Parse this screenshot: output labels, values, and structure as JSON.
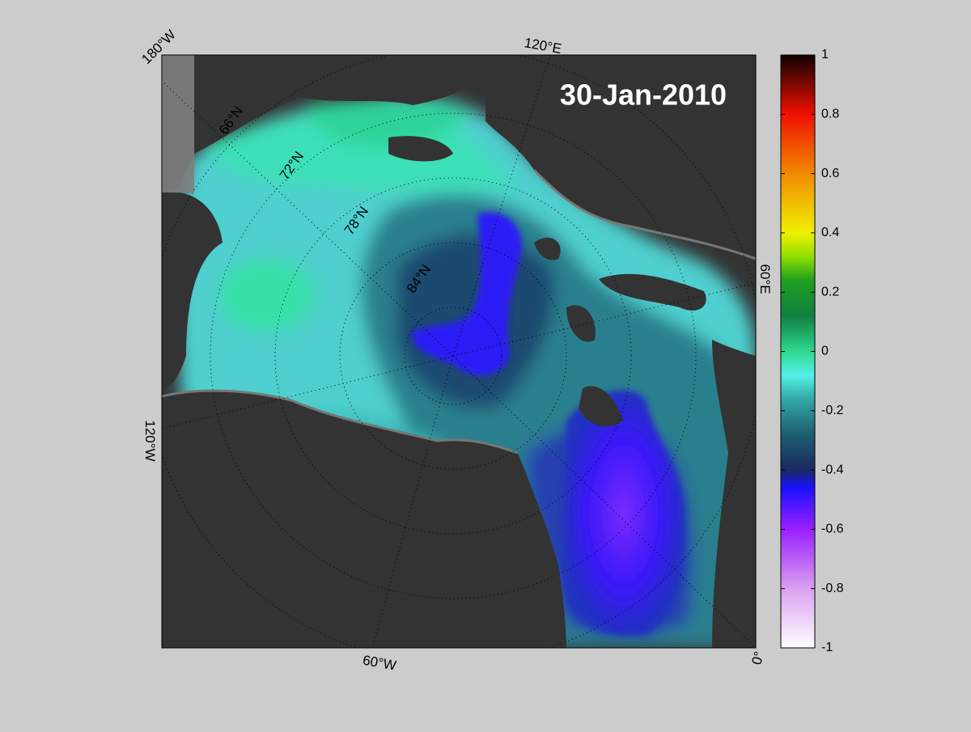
{
  "map": {
    "date_label": "30-Jan-2010",
    "lon_labels": [
      "180°W",
      "120°E",
      "60°E",
      "0°",
      "60°W",
      "120°W"
    ],
    "lat_labels": [
      "66°N",
      "72°N",
      "78°N",
      "84°N"
    ]
  },
  "colorbar": {
    "lim": [
      -1,
      1
    ],
    "ticks": [
      1,
      0.8,
      0.6,
      0.4,
      0.2,
      0,
      -0.2,
      -0.4,
      -0.6,
      -0.8,
      -1
    ]
  }
}
